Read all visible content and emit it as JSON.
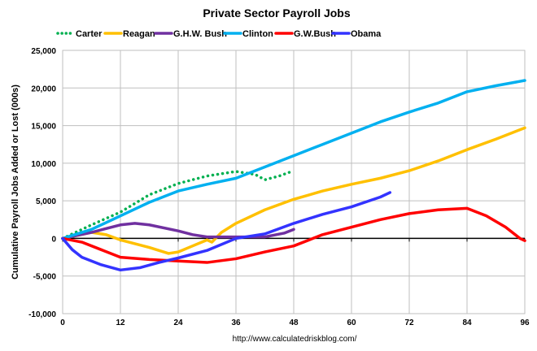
{
  "chart_data": {
    "type": "line",
    "title": "Private Sector Payroll Jobs",
    "ylabel": "Cumulative Payroll Jobs Added or  Lost (000s)",
    "xlabel": "",
    "source": "http://www.calculatedriskblog.com/",
    "xlim": [
      0,
      96
    ],
    "ylim": [
      -10000,
      25000
    ],
    "xticks": [
      0,
      12,
      24,
      36,
      48,
      60,
      72,
      84,
      96
    ],
    "yticks": [
      -10000,
      -5000,
      0,
      5000,
      10000,
      15000,
      20000,
      25000
    ],
    "ytick_labels": [
      "-10,000",
      "-5,000",
      "0",
      "5,000",
      "10,000",
      "15,000",
      "20,000",
      "25,000"
    ],
    "grid": true,
    "legend": "top",
    "series": [
      {
        "name": "Carter",
        "color": "#00b050",
        "dotted": true,
        "x": [
          0,
          6,
          12,
          18,
          24,
          30,
          36,
          40,
          42,
          45,
          48
        ],
        "y": [
          0,
          1800,
          3500,
          5800,
          7300,
          8300,
          8900,
          8500,
          7800,
          8300,
          9000
        ]
      },
      {
        "name": "Reagan",
        "color": "#ffc000",
        "x": [
          0,
          6,
          9,
          12,
          18,
          22,
          24,
          27,
          30,
          31,
          33,
          36,
          42,
          48,
          54,
          60,
          66,
          72,
          78,
          84,
          90,
          96
        ],
        "y": [
          0,
          800,
          500,
          -200,
          -1200,
          -2000,
          -1800,
          -1000,
          -200,
          -500,
          800,
          2000,
          3800,
          5200,
          6300,
          7200,
          8000,
          9000,
          10300,
          11800,
          13200,
          14700
        ]
      },
      {
        "name": "G.H.W. Bush",
        "color": "#7030a0",
        "x": [
          0,
          6,
          12,
          15,
          18,
          24,
          27,
          30,
          36,
          42,
          46,
          48
        ],
        "y": [
          0,
          800,
          1800,
          2000,
          1800,
          1000,
          500,
          200,
          200,
          200,
          700,
          1200
        ]
      },
      {
        "name": "Clinton",
        "color": "#00b0f0",
        "x": [
          0,
          6,
          12,
          18,
          24,
          30,
          36,
          42,
          48,
          54,
          60,
          66,
          72,
          78,
          84,
          90,
          96
        ],
        "y": [
          0,
          1200,
          3000,
          4800,
          6300,
          7200,
          8000,
          9500,
          11000,
          12500,
          14000,
          15500,
          16800,
          18000,
          19500,
          20300,
          21000
        ]
      },
      {
        "name": "G.W.Bush",
        "color": "#ff0000",
        "x": [
          0,
          4,
          8,
          12,
          18,
          24,
          30,
          36,
          42,
          48,
          52,
          54,
          60,
          66,
          72,
          78,
          84,
          88,
          92,
          95,
          96
        ],
        "y": [
          0,
          -500,
          -1500,
          -2500,
          -2800,
          -3000,
          -3200,
          -2700,
          -1800,
          -1000,
          0,
          500,
          1500,
          2500,
          3300,
          3800,
          4000,
          3000,
          1500,
          0,
          -300
        ]
      },
      {
        "name": "Obama",
        "color": "#3333ff",
        "x": [
          0,
          2,
          4,
          8,
          12,
          16,
          20,
          24,
          30,
          36,
          42,
          48,
          54,
          60,
          66,
          68
        ],
        "y": [
          0,
          -1500,
          -2500,
          -3500,
          -4200,
          -3900,
          -3200,
          -2600,
          -1600,
          0,
          600,
          2000,
          3200,
          4200,
          5500,
          6100
        ]
      }
    ]
  }
}
